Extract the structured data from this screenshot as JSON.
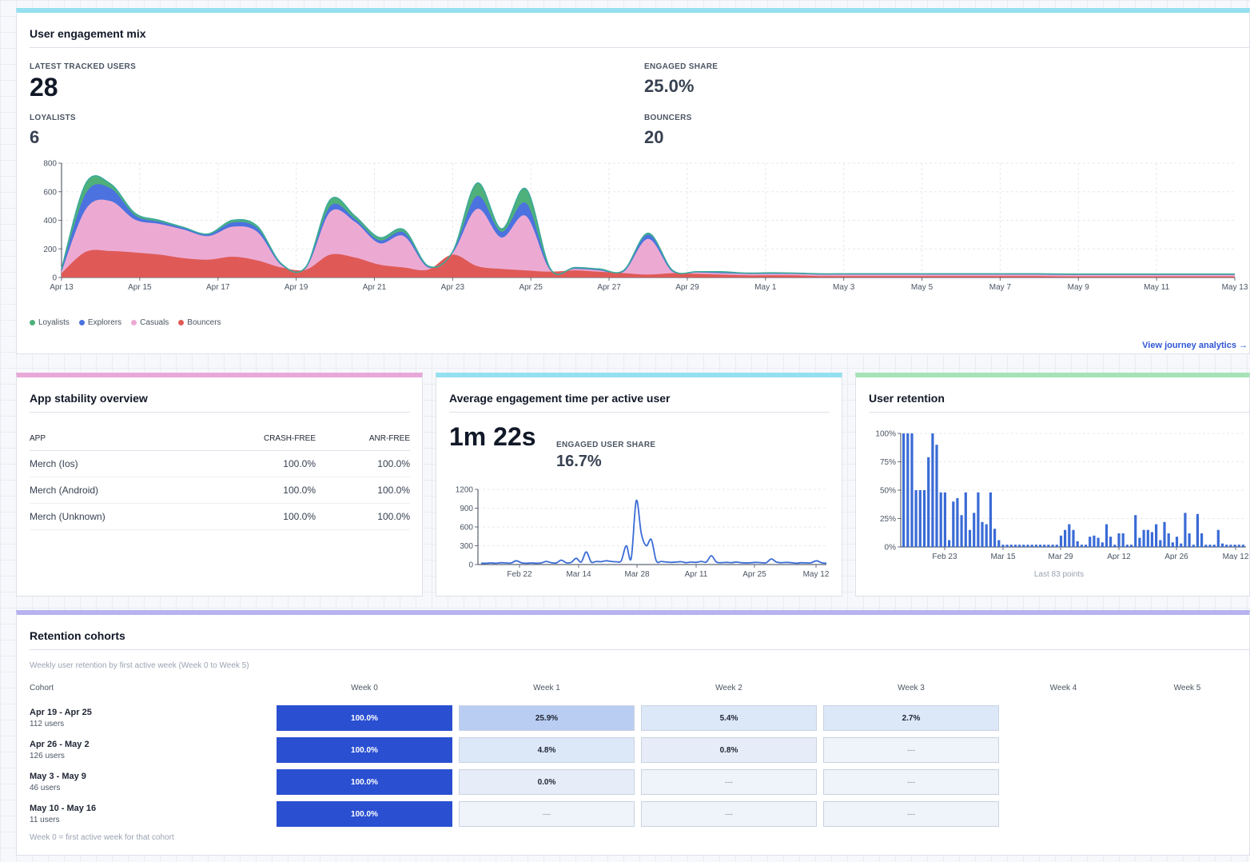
{
  "colors": {
    "loyalists": "#4fb07a",
    "explorers": "#4c72e0",
    "casuals": "#ecaad3",
    "bouncers": "#df5a56",
    "bar_blue": "#3a6bd6",
    "link": "#2f55d4",
    "accent_cyan": "#94dff0",
    "accent_pink": "#e8a9d8",
    "accent_green": "#a5e3b6",
    "accent_purple": "#b8b3ef"
  },
  "engagement": {
    "title": "User engagement mix",
    "stats": {
      "latest_label": "LATEST TRACKED USERS",
      "latest_value": "28",
      "engaged_label": "ENGAGED SHARE",
      "engaged_value": "25.0%",
      "loyalists_label": "LOYALISTS",
      "loyalists_value": "6",
      "bouncers_label": "BOUNCERS",
      "bouncers_value": "20"
    },
    "legend": [
      "Loyalists",
      "Explorers",
      "Casuals",
      "Bouncers"
    ],
    "link": "View journey analytics →"
  },
  "stability": {
    "title": "App stability overview",
    "headers": [
      "APP",
      "CRASH-FREE",
      "ANR-FREE"
    ],
    "rows": [
      [
        "Merch (Ios)",
        "100.0%",
        "100.0%"
      ],
      [
        "Merch (Android)",
        "100.0%",
        "100.0%"
      ],
      [
        "Merch (Unknown)",
        "100.0%",
        "100.0%"
      ]
    ]
  },
  "avg_time": {
    "title": "Average engagement time per active user",
    "value": "1m 22s",
    "share_label": "ENGAGED USER SHARE",
    "share_value": "16.7%"
  },
  "retention": {
    "title": "User retention",
    "footnote": "Last 83 points"
  },
  "cohorts": {
    "title": "Retention cohorts",
    "subtitle": "Weekly user retention by first active week (Week 0 to Week 5)",
    "cohort_header": "Cohort",
    "weeks": [
      "Week 0",
      "Week 1",
      "Week 2",
      "Week 3",
      "Week 4",
      "Week 5"
    ],
    "rows": [
      {
        "name": "Apr 19 - Apr 25",
        "users": "112 users",
        "cells": [
          "100.0%",
          "25.9%",
          "5.4%",
          "2.7%"
        ],
        "values": [
          100,
          25.9,
          5.4,
          2.7
        ]
      },
      {
        "name": "Apr 26 - May 2",
        "users": "126 users",
        "cells": [
          "100.0%",
          "4.8%",
          "0.8%",
          "—"
        ],
        "values": [
          100,
          4.8,
          0.8,
          null
        ]
      },
      {
        "name": "May 3 - May 9",
        "users": "46 users",
        "cells": [
          "100.0%",
          "0.0%",
          "—",
          "—"
        ],
        "values": [
          100,
          0,
          null,
          null
        ]
      },
      {
        "name": "May 10 - May 16",
        "users": "11 users",
        "cells": [
          "100.0%",
          "—",
          "—",
          "—"
        ],
        "values": [
          100,
          null,
          null,
          null
        ]
      }
    ],
    "footnote": "Week 0 = first active week for that cohort"
  },
  "chart_data": [
    {
      "type": "area",
      "stacked": true,
      "x_labels": [
        "Apr 13",
        "Apr 15",
        "Apr 17",
        "Apr 19",
        "Apr 21",
        "Apr 23",
        "Apr 25",
        "Apr 27",
        "Apr 29",
        "May 1",
        "May 3",
        "May 5",
        "May 7",
        "May 9",
        "May 11",
        "May 13"
      ],
      "yticks": [
        0,
        200,
        400,
        600,
        800
      ],
      "ylim": [
        0,
        800
      ],
      "series": [
        {
          "name": "Bouncers",
          "values": [
            30,
            180,
            185,
            175,
            160,
            135,
            125,
            145,
            120,
            70,
            55,
            160,
            140,
            90,
            70,
            55,
            160,
            80,
            60,
            50,
            40,
            50,
            40,
            30,
            20,
            30,
            25,
            20,
            15,
            15,
            15,
            10,
            10,
            10,
            10,
            10,
            10,
            10,
            10,
            10,
            10,
            8,
            8,
            8,
            8,
            8,
            8,
            8,
            8
          ]
        },
        {
          "name": "Casuals",
          "values": [
            10,
            300,
            350,
            230,
            215,
            200,
            165,
            210,
            200,
            15,
            10,
            300,
            250,
            150,
            220,
            15,
            10,
            400,
            220,
            380,
            10,
            10,
            10,
            10,
            250,
            10,
            10,
            10,
            10,
            10,
            10,
            10,
            10,
            10,
            10,
            10,
            10,
            10,
            10,
            10,
            10,
            10,
            10,
            10,
            10,
            10,
            10,
            10,
            10
          ]
        },
        {
          "name": "Explorers",
          "values": [
            10,
            110,
            90,
            30,
            15,
            10,
            10,
            30,
            25,
            5,
            5,
            40,
            20,
            20,
            25,
            5,
            5,
            90,
            40,
            90,
            5,
            5,
            5,
            5,
            30,
            5,
            3,
            5,
            3,
            3,
            3,
            3,
            3,
            3,
            3,
            3,
            3,
            3,
            3,
            3,
            3,
            3,
            3,
            3,
            3,
            3,
            3,
            3,
            3
          ]
        },
        {
          "name": "Loyalists",
          "values": [
            10,
            70,
            30,
            15,
            10,
            5,
            5,
            15,
            15,
            5,
            5,
            45,
            20,
            20,
            20,
            5,
            5,
            90,
            20,
            100,
            5,
            5,
            5,
            5,
            10,
            5,
            3,
            5,
            3,
            5,
            3,
            3,
            3,
            3,
            3,
            3,
            3,
            3,
            3,
            3,
            3,
            3,
            3,
            3,
            3,
            3,
            3,
            3,
            3
          ]
        }
      ]
    },
    {
      "type": "line",
      "x_labels": [
        "Feb 22",
        "Mar 14",
        "Mar 28",
        "Apr 11",
        "Apr 25",
        "May 12"
      ],
      "yticks": [
        0,
        300,
        600,
        900,
        1200
      ],
      "ylim": [
        0,
        1200
      ],
      "values": [
        20,
        20,
        25,
        20,
        30,
        25,
        25,
        60,
        30,
        20,
        25,
        20,
        25,
        50,
        30,
        25,
        70,
        30,
        35,
        100,
        40,
        200,
        40,
        50,
        45,
        60,
        50,
        45,
        60,
        300,
        100,
        1020,
        500,
        300,
        400,
        60,
        50,
        40,
        35,
        40,
        45,
        30,
        40,
        35,
        50,
        40,
        140,
        40,
        30,
        35,
        30,
        40,
        30,
        25,
        30,
        35,
        30,
        30,
        90,
        40,
        30,
        35,
        30,
        20,
        30,
        25,
        30,
        60,
        30,
        20
      ]
    },
    {
      "type": "bar",
      "x_labels": [
        "Feb 23",
        "Mar 15",
        "Mar 29",
        "Apr 12",
        "Apr 26",
        "May 12"
      ],
      "yticks": [
        "0%",
        "25%",
        "50%",
        "75%",
        "100%"
      ],
      "ylim": [
        0,
        100
      ],
      "values": [
        100,
        100,
        100,
        50,
        50,
        50,
        79,
        100,
        90,
        48,
        48,
        6,
        40,
        43,
        28,
        48,
        15,
        30,
        48,
        22,
        20,
        48,
        16,
        6,
        2,
        2,
        2,
        2,
        2,
        2,
        2,
        2,
        2,
        2,
        2,
        2,
        2,
        2,
        10,
        15,
        20,
        15,
        5,
        2,
        2,
        9,
        10,
        8,
        4,
        20,
        9,
        2,
        12,
        12,
        2,
        2,
        28,
        8,
        15,
        15,
        13,
        20,
        6,
        22,
        12,
        4,
        9,
        3,
        30,
        12,
        2,
        29,
        12,
        2,
        2,
        2,
        15,
        3,
        2,
        2,
        2,
        2,
        2
      ]
    }
  ]
}
